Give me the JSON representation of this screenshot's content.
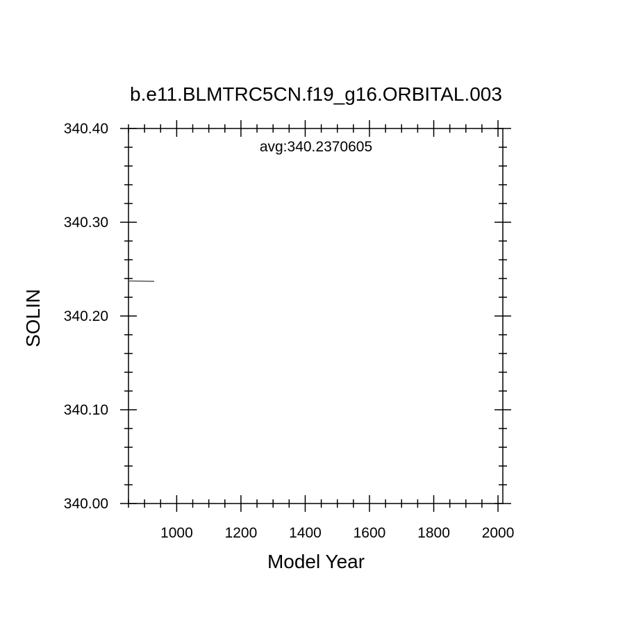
{
  "chart_data": {
    "type": "line",
    "title": "b.e11.BLMTRC5CN.f19_g16.ORBITAL.003",
    "xlabel": "Model Year",
    "ylabel": "SOLIN",
    "annotation": "avg:340.2370605",
    "xlim": [
      850,
      2015
    ],
    "ylim": [
      340.0,
      340.4
    ],
    "x_ticks": [
      1000,
      1200,
      1400,
      1600,
      1800,
      2000
    ],
    "x_tick_labels": [
      "1000",
      "1200",
      "1400",
      "1600",
      "1800",
      "2000"
    ],
    "y_ticks": [
      340.0,
      340.1,
      340.2,
      340.3,
      340.4
    ],
    "y_tick_labels": [
      "340.00",
      "340.10",
      "340.20",
      "340.30",
      "340.40"
    ],
    "grid": false,
    "series": [
      {
        "color": "#555555",
        "x": [
          850,
          860,
          870,
          880,
          890,
          900,
          910,
          920,
          930
        ],
        "y": [
          340.2374,
          340.2373,
          340.2373,
          340.2372,
          340.2372,
          340.2371,
          340.237,
          340.237,
          340.2369
        ]
      }
    ]
  }
}
